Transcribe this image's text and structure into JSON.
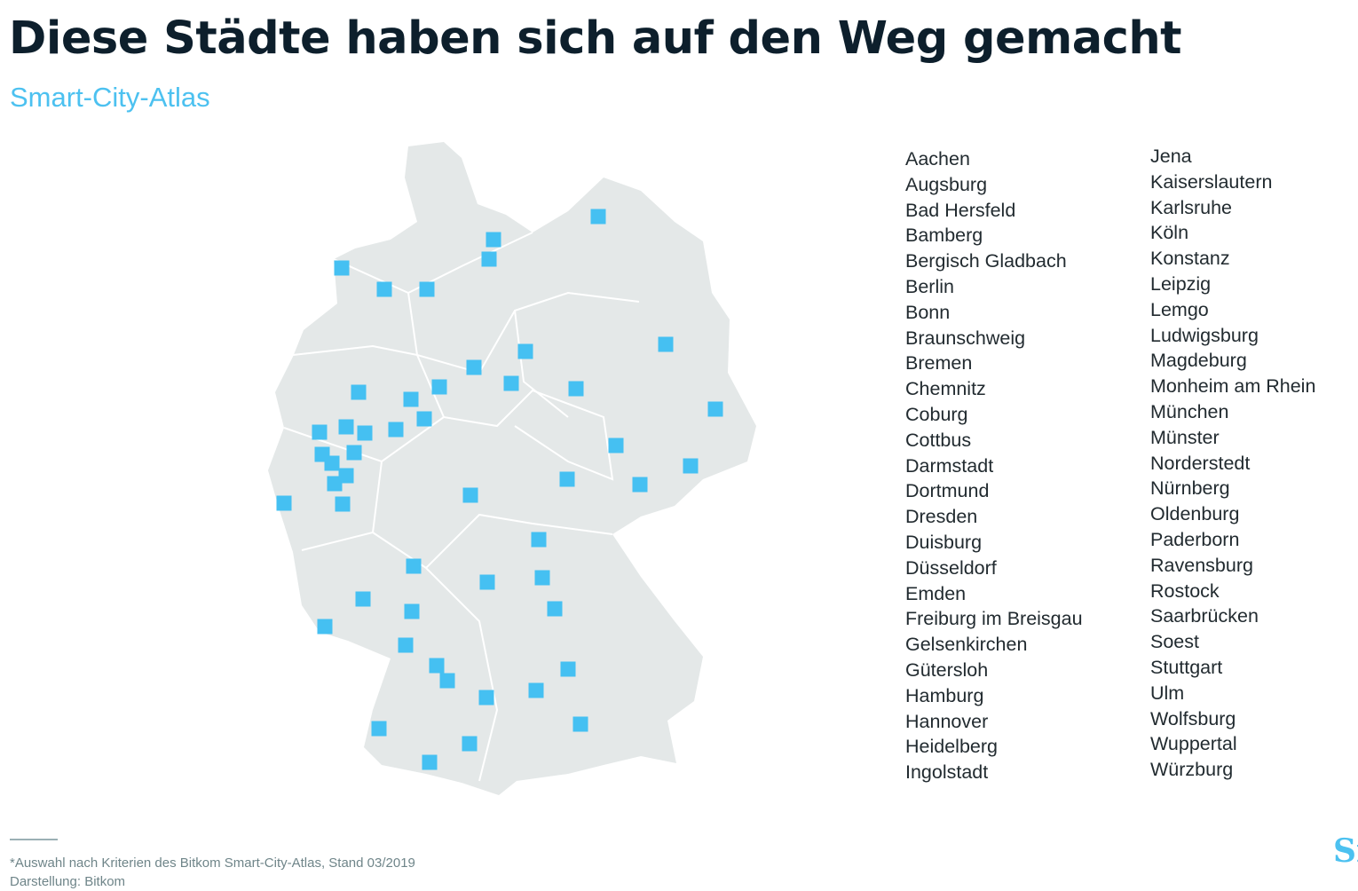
{
  "header": {
    "title": "Diese Städte haben sich auf den Weg gemacht",
    "subtitle": "Smart-City-Atlas"
  },
  "colors": {
    "title": "#0d1f2c",
    "accent": "#4cc1f0",
    "map_fill": "#e4e8e8",
    "map_borders": "#ffffff",
    "marker": "#45c0f2"
  },
  "map": {
    "region": "Germany",
    "marker_shape": "square",
    "marker_count": 50
  },
  "cities": {
    "column1": [
      "Aachen",
      "Augsburg",
      "Bad Hersfeld",
      "Bamberg",
      "Bergisch Gladbach",
      "Berlin",
      "Bonn",
      "Braunschweig",
      "Bremen",
      "Chemnitz",
      "Coburg",
      "Cottbus",
      "Darmstadt",
      "Dortmund",
      "Dresden",
      "Duisburg",
      "Düsseldorf",
      "Emden",
      "Freiburg im Breisgau",
      "Gelsenkirchen",
      "Gütersloh",
      "Hamburg",
      "Hannover",
      "Heidelberg",
      "Ingolstadt"
    ],
    "column2": [
      "Jena",
      "Kaiserslautern",
      "Karlsruhe",
      "Köln",
      "Konstanz",
      "Leipzig",
      "Lemgo",
      "Ludwigsburg",
      "Magdeburg",
      "Monheim am Rhein",
      "München",
      "Münster",
      "Norderstedt",
      "Nürnberg",
      "Oldenburg",
      "Paderborn",
      "Ravensburg",
      "Rostock",
      "Saarbrücken",
      "Soest",
      "Stuttgart",
      "Ulm",
      "Wolfsburg",
      "Wuppertal",
      "Würzburg"
    ]
  },
  "footer": {
    "note": "*Auswahl nach Kriterien des Bitkom Smart-City-Atlas, Stand 03/2019",
    "credit": "Darstellung: Bitkom",
    "logo_text": "Sr"
  }
}
